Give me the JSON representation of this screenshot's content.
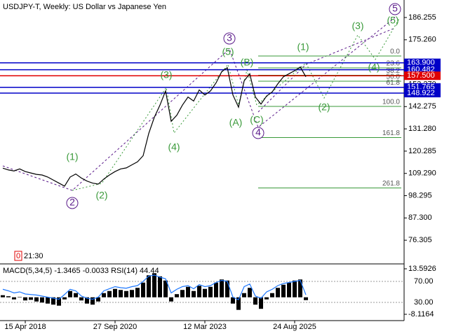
{
  "chart_data": [
    {
      "type": "line",
      "title": "USDJPY-T, Weekly:  US Dollar vs Japanese Yen",
      "categories": [
        null,
        null,
        null,
        null,
        "15 Apr 2018",
        null,
        null,
        null,
        null,
        null,
        null,
        null,
        null,
        null,
        null,
        null,
        null,
        null,
        null,
        null,
        "27 Sep 2020",
        null,
        null,
        null,
        null,
        null,
        null,
        null,
        null,
        null,
        null,
        null,
        null,
        null,
        null,
        null,
        "12 Mar 2023",
        null,
        null,
        null,
        null,
        null,
        null,
        null,
        null,
        null,
        null,
        null,
        null,
        null,
        null,
        null,
        "24 Aug 2025",
        null,
        null
      ],
      "values": [
        111.9,
        111.0,
        110.5,
        111.5,
        110.2,
        109.5,
        108.8,
        108.5,
        107.5,
        106.0,
        104.5,
        103.0,
        107.5,
        109.0,
        107.0,
        105.5,
        104.5,
        104.0,
        106.5,
        108.5,
        110.2,
        111.5,
        112.0,
        113.5,
        115.0,
        118.0,
        129.0,
        137.0,
        143.0,
        150.0,
        135.0,
        138.0,
        143.0,
        147.0,
        145.0,
        150.5,
        148.0,
        150.0,
        154.0,
        159.5,
        161.5,
        148.0,
        142.0,
        155.0,
        158.5,
        147.0,
        143.5,
        147.5,
        149.5,
        153.5,
        157.0,
        158.5,
        160.0,
        161.8,
        157.0
      ],
      "color": "#000000",
      "ylim": [
        65.3,
        194.9
      ],
      "yticks": [
        186.255,
        {
          "value": 175.26,
          "label": "175.260"
        },
        164.265,
        {
          "value": 153.27,
          "label": "153.270"
        },
        142.275,
        {
          "value": 131.28,
          "label": "131.280"
        },
        120.285,
        {
          "value": 109.29,
          "label": "109.290"
        },
        98.295,
        {
          "value": 87.3,
          "label": "87.300"
        },
        76.305
      ],
      "levels": [
        {
          "label": "163.900",
          "value": 163.9,
          "color": "#0000c8"
        },
        {
          "label": "160.482",
          "value": 160.482,
          "color": "#0000c8"
        },
        {
          "label": "157.500",
          "value": 157.5,
          "color": "#e00000"
        },
        {
          "label": "151.765",
          "value": 151.765,
          "color": "#0000c8"
        },
        {
          "label": "148.922",
          "value": 148.922,
          "color": "#0000c8"
        }
      ],
      "fib_levels": [
        {
          "label": "0.0",
          "value": 167.25
        },
        {
          "label": "23.6",
          "value": 161.38
        },
        {
          "label": "38.2",
          "value": 157.75
        },
        {
          "label": "50.0",
          "value": 154.81
        },
        {
          "label": "61.8",
          "value": 151.87
        },
        {
          "label": "100.0",
          "value": 142.37
        },
        {
          "label": "161.8",
          "value": 127.0
        },
        {
          "label": "261.8",
          "value": 102.1
        }
      ],
      "annotations": [
        {
          "text": "(1)",
          "color": "#3a9a3a"
        },
        {
          "text": "(2)",
          "color": "#3a9a3a"
        },
        {
          "text": "(3)",
          "color": "#3a9a3a"
        },
        {
          "text": "(4)",
          "color": "#3a9a3a"
        },
        {
          "text": "(5)",
          "color": "#3a9a3a"
        },
        {
          "text": "(B)",
          "color": "#3a9a3a"
        },
        {
          "text": "(A)",
          "color": "#3a9a3a"
        },
        {
          "text": "(C)",
          "color": "#3a9a3a"
        },
        {
          "text": "(1)",
          "color": "#3a9a3a"
        },
        {
          "text": "(2)",
          "color": "#3a9a3a"
        },
        {
          "text": "(3)",
          "color": "#3a9a3a"
        },
        {
          "text": "(4)",
          "color": "#3a9a3a"
        },
        {
          "text": "(5)",
          "color": "#3a9a3a"
        },
        {
          "text": "2",
          "color": "#5a1a8a"
        },
        {
          "text": "3",
          "color": "#5a1a8a"
        },
        {
          "text": "4",
          "color": "#5a1a8a"
        },
        {
          "text": "5",
          "color": "#5a1a8a"
        }
      ],
      "shift_label": "0",
      "time_label": "21:30"
    },
    {
      "type": "bar",
      "title": "MACD(5,34,5) -1.3465 -0.0033 RSI(14) 44.44",
      "ylim": [
        -11.12,
        15.6
      ],
      "yticks": [
        13.5926,
        -8.1164
      ],
      "y2lim": [
        -4.67,
        102
      ],
      "y2ticks": [
        {
          "value": 70,
          "label": "70.00"
        },
        {
          "value": 30,
          "label": "30.00"
        }
      ],
      "series": [
        {
          "type": "bar",
          "color": "#000000",
          "values": [
            1.0,
            0.5,
            -1.0,
            0.2,
            -1.5,
            -1.2,
            -2.0,
            -2.5,
            -3.0,
            -3.5,
            -4.0,
            -1.0,
            3.0,
            2.0,
            -1.5,
            -3.0,
            -3.5,
            -2.0,
            2.0,
            3.0,
            4.0,
            3.5,
            3.0,
            3.5,
            4.5,
            7.0,
            10.5,
            11.5,
            10.0,
            8.0,
            -2.0,
            1.5,
            3.5,
            5.0,
            3.0,
            5.5,
            4.0,
            5.0,
            7.0,
            8.5,
            8.0,
            -3.0,
            -6.0,
            2.0,
            4.5,
            -3.5,
            -5.5,
            -1.0,
            2.0,
            4.5,
            6.0,
            7.0,
            8.0,
            8.5,
            -1.3465
          ]
        },
        {
          "type": "line",
          "axis": "y2",
          "color": "#1e78ff",
          "values": [
            55,
            52,
            48,
            50,
            46,
            45,
            44,
            42,
            40,
            38,
            36,
            45,
            55,
            52,
            42,
            38,
            36,
            40,
            52,
            56,
            60,
            58,
            57,
            60,
            62,
            70,
            80,
            82,
            78,
            75,
            48,
            55,
            60,
            62,
            56,
            64,
            60,
            62,
            68,
            72,
            70,
            40,
            35,
            60,
            65,
            42,
            38,
            50,
            55,
            62,
            66,
            68,
            70,
            72,
            44.44
          ]
        }
      ]
    }
  ]
}
